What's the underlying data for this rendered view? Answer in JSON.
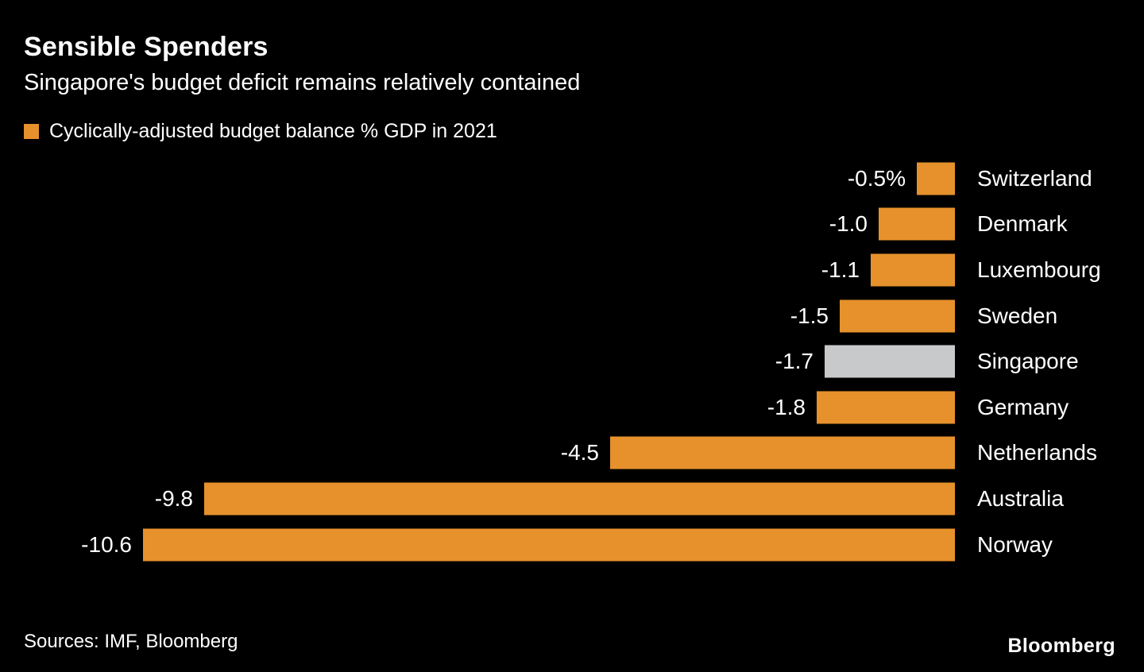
{
  "header": {
    "title": "Sensible Spenders",
    "subtitle": "Singapore's budget deficit remains relatively contained"
  },
  "legend": {
    "label": "Cyclically-adjusted budget balance % GDP in 2021"
  },
  "chart_data": {
    "type": "bar",
    "orientation": "horizontal",
    "title": "Sensible Spenders",
    "subtitle": "Singapore's budget deficit remains relatively contained",
    "series_label": "Cyclically-adjusted budget balance % GDP in 2021",
    "categories": [
      "Switzerland",
      "Denmark",
      "Luxembourg",
      "Sweden",
      "Singapore",
      "Germany",
      "Netherlands",
      "Australia",
      "Norway"
    ],
    "values": [
      -0.5,
      -1.0,
      -1.1,
      -1.5,
      -1.7,
      -1.8,
      -4.5,
      -9.8,
      -10.6
    ],
    "value_labels": [
      "-0.5%",
      "-1.0",
      "-1.1",
      "-1.5",
      "-1.7",
      "-1.8",
      "-4.5",
      "-9.8",
      "-10.6"
    ],
    "unit": "% GDP",
    "xlim": [
      -10.6,
      0
    ],
    "highlight_category": "Singapore",
    "grid": false,
    "legend_position": "top-left",
    "bars_anchored": "right"
  },
  "colors": {
    "background": "#000000",
    "text": "#ffffff",
    "bar": "#E6912C",
    "highlight_bar": "#C8C9CA"
  },
  "footer": {
    "sources": "Sources: IMF, Bloomberg",
    "brand": "Bloomberg"
  }
}
